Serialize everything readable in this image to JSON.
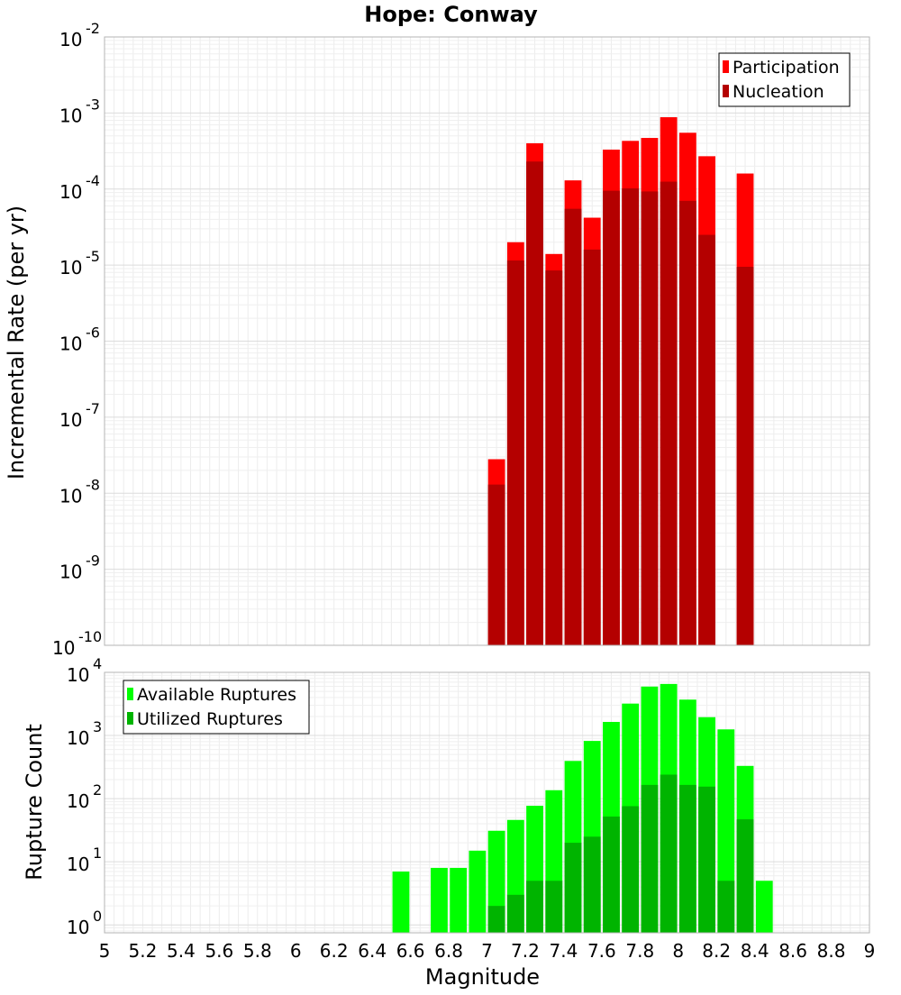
{
  "chart_data": [
    {
      "type": "bar",
      "title": "Hope: Conway",
      "xlabel": "",
      "ylabel": "Incremental Rate (per yr)",
      "yscale": "log",
      "ylim": [
        1e-10,
        0.01
      ],
      "xlim": [
        5,
        9
      ],
      "grid": true,
      "legend_position": "top-right",
      "bar_width": 0.1,
      "y_tick_labels": [
        {
          "base": "10",
          "exp": "-10"
        },
        {
          "base": "10",
          "exp": "-9"
        },
        {
          "base": "10",
          "exp": "-8"
        },
        {
          "base": "10",
          "exp": "-7"
        },
        {
          "base": "10",
          "exp": "-6"
        },
        {
          "base": "10",
          "exp": "-5"
        },
        {
          "base": "10",
          "exp": "-4"
        },
        {
          "base": "10",
          "exp": "-3"
        },
        {
          "base": "10",
          "exp": "-2"
        }
      ],
      "series": [
        {
          "name": "Participation",
          "color": "#ff0000",
          "x": [
            7.05,
            7.15,
            7.25,
            7.35,
            7.45,
            7.55,
            7.65,
            7.75,
            7.85,
            7.95,
            8.05,
            8.15,
            8.35
          ],
          "values": [
            2.8e-08,
            2e-05,
            0.0004,
            1.4e-05,
            0.00013,
            4.2e-05,
            0.00033,
            0.00043,
            0.00047,
            0.00088,
            0.00055,
            0.00027,
            0.00016
          ]
        },
        {
          "name": "Nucleation",
          "color": "#b40000",
          "x": [
            7.05,
            7.15,
            7.25,
            7.35,
            7.45,
            7.55,
            7.65,
            7.75,
            7.85,
            7.95,
            8.05,
            8.15,
            8.35
          ],
          "values": [
            1.3e-08,
            1.15e-05,
            0.00023,
            8.5e-06,
            5.5e-05,
            1.6e-05,
            9.5e-05,
            0.000102,
            9.3e-05,
            0.000125,
            7e-05,
            2.5e-05,
            9.5e-06
          ]
        }
      ]
    },
    {
      "type": "bar",
      "title": "",
      "xlabel": "Magnitude",
      "ylabel": "Rupture Count",
      "yscale": "log",
      "ylim": [
        0.75,
        10000
      ],
      "xlim": [
        5,
        9
      ],
      "grid": true,
      "legend_position": "top-left",
      "bar_width": 0.1,
      "x_tick_labels": [
        "5",
        "5.2",
        "5.4",
        "5.6",
        "5.8",
        "6",
        "6.2",
        "6.4",
        "6.6",
        "6.8",
        "7",
        "7.2",
        "7.4",
        "7.6",
        "7.8",
        "8",
        "8.2",
        "8.4",
        "8.6",
        "8.8",
        "9"
      ],
      "y_tick_labels": [
        {
          "base": "10",
          "exp": "0"
        },
        {
          "base": "10",
          "exp": "1"
        },
        {
          "base": "10",
          "exp": "2"
        },
        {
          "base": "10",
          "exp": "3"
        },
        {
          "base": "10",
          "exp": "4"
        }
      ],
      "series": [
        {
          "name": "Available Ruptures",
          "color": "#00ff00",
          "x": [
            6.55,
            6.75,
            6.85,
            6.95,
            7.05,
            7.15,
            7.25,
            7.35,
            7.45,
            7.55,
            7.65,
            7.75,
            7.85,
            7.95,
            8.05,
            8.15,
            8.25,
            8.35,
            8.45
          ],
          "values": [
            7,
            8,
            8,
            15,
            31,
            46,
            77,
            136,
            395,
            820,
            1640,
            3200,
            5950,
            6550,
            3700,
            1950,
            1250,
            330,
            5
          ]
        },
        {
          "name": "Utilized Ruptures",
          "color": "#00b400",
          "x": [
            7.05,
            7.15,
            7.25,
            7.35,
            7.45,
            7.55,
            7.65,
            7.75,
            7.85,
            7.95,
            8.05,
            8.15,
            8.25,
            8.35
          ],
          "values": [
            2,
            3,
            5,
            5,
            20,
            25,
            52,
            76,
            165,
            240,
            165,
            155,
            5,
            47
          ]
        }
      ]
    }
  ]
}
